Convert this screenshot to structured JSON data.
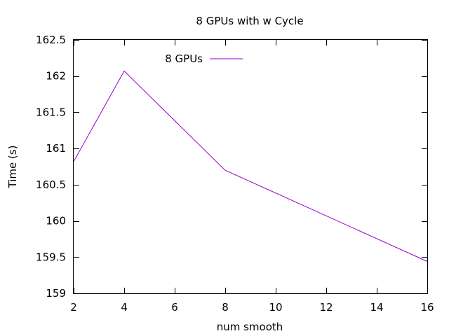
{
  "chart_data": {
    "type": "line",
    "title": "8 GPUs with w Cycle",
    "xlabel": "num smooth",
    "ylabel": "Time (s)",
    "xlim": [
      2,
      16
    ],
    "ylim": [
      159,
      162.5
    ],
    "x_ticks": [
      2,
      4,
      6,
      8,
      10,
      12,
      14,
      16
    ],
    "y_ticks": [
      159,
      159.5,
      160,
      160.5,
      161,
      161.5,
      162,
      162.5
    ],
    "grid": false,
    "legend_position": "top-left",
    "series": [
      {
        "name": "8 GPUs",
        "color": "#9400d3",
        "points": [
          {
            "x": 2,
            "y": 160.82
          },
          {
            "x": 4,
            "y": 162.07
          },
          {
            "x": 8,
            "y": 160.7
          },
          {
            "x": 16,
            "y": 159.44
          }
        ]
      }
    ]
  }
}
